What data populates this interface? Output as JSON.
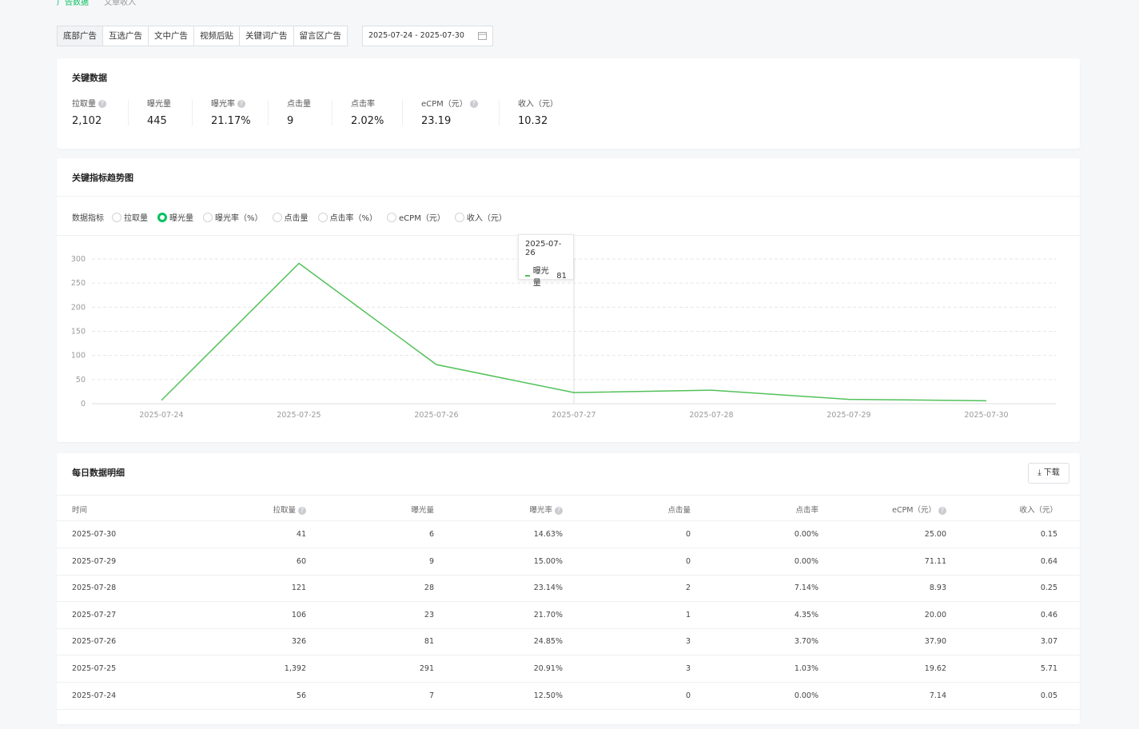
{
  "breadcrumb": [
    "广告数据",
    "文章收入"
  ],
  "tabs": [
    "底部广告",
    "互选广告",
    "文中广告",
    "视频后贴",
    "关键词广告",
    "留言区广告"
  ],
  "active_tab": 0,
  "date_range": "2025-07-24 - 2025-07-30",
  "key_data": {
    "title": "关键数据",
    "metrics": [
      {
        "label": "拉取量",
        "value": "2,102",
        "help": true
      },
      {
        "label": "曝光量",
        "value": "445",
        "help": false
      },
      {
        "label": "曝光率",
        "value": "21.17%",
        "help": true
      },
      {
        "label": "点击量",
        "value": "9",
        "help": false
      },
      {
        "label": "点击率",
        "value": "2.02%",
        "help": false
      },
      {
        "label": "eCPM（元）",
        "value": "23.19",
        "help": true
      },
      {
        "label": "收入（元）",
        "value": "10.32",
        "help": false
      }
    ]
  },
  "trend": {
    "title": "关键指标趋势图",
    "indicator_label": "数据指标",
    "options": [
      "拉取量",
      "曝光量",
      "曝光率（%）",
      "点击量",
      "点击率（%）",
      "eCPM（元）",
      "收入（元）"
    ]
  },
  "chart_data": {
    "type": "line",
    "categories": [
      "2025-07-24",
      "2025-07-25",
      "2025-07-26",
      "2025-07-27",
      "2025-07-28",
      "2025-07-29",
      "2025-07-30"
    ],
    "series": [
      {
        "name": "曝光量",
        "color": "#52c15a",
        "values": [
          7,
          291,
          81,
          23,
          28,
          9,
          6
        ]
      }
    ],
    "ylim": [
      0,
      300
    ],
    "yticks": [
      0,
      50,
      100,
      150,
      200,
      250,
      300
    ],
    "grid": true,
    "tooltip_index": 2
  },
  "table": {
    "title": "每日数据明细",
    "download": "下载",
    "columns": [
      {
        "label": "时间",
        "help": false
      },
      {
        "label": "拉取量",
        "help": true
      },
      {
        "label": "曝光量",
        "help": false
      },
      {
        "label": "曝光率",
        "help": true
      },
      {
        "label": "点击量",
        "help": false
      },
      {
        "label": "点击率",
        "help": false
      },
      {
        "label": "eCPM（元）",
        "help": true
      },
      {
        "label": "收入（元）",
        "help": false
      }
    ],
    "rows": [
      [
        "2025-07-30",
        "41",
        "6",
        "14.63%",
        "0",
        "0.00%",
        "25.00",
        "0.15"
      ],
      [
        "2025-07-29",
        "60",
        "9",
        "15.00%",
        "0",
        "0.00%",
        "71.11",
        "0.64"
      ],
      [
        "2025-07-28",
        "121",
        "28",
        "23.14%",
        "2",
        "7.14%",
        "8.93",
        "0.25"
      ],
      [
        "2025-07-27",
        "106",
        "23",
        "21.70%",
        "1",
        "4.35%",
        "20.00",
        "0.46"
      ],
      [
        "2025-07-26",
        "326",
        "81",
        "24.85%",
        "3",
        "3.70%",
        "37.90",
        "3.07"
      ],
      [
        "2025-07-25",
        "1,392",
        "291",
        "20.91%",
        "3",
        "1.03%",
        "19.62",
        "5.71"
      ],
      [
        "2025-07-24",
        "56",
        "7",
        "12.50%",
        "0",
        "0.00%",
        "7.14",
        "0.05"
      ]
    ]
  }
}
